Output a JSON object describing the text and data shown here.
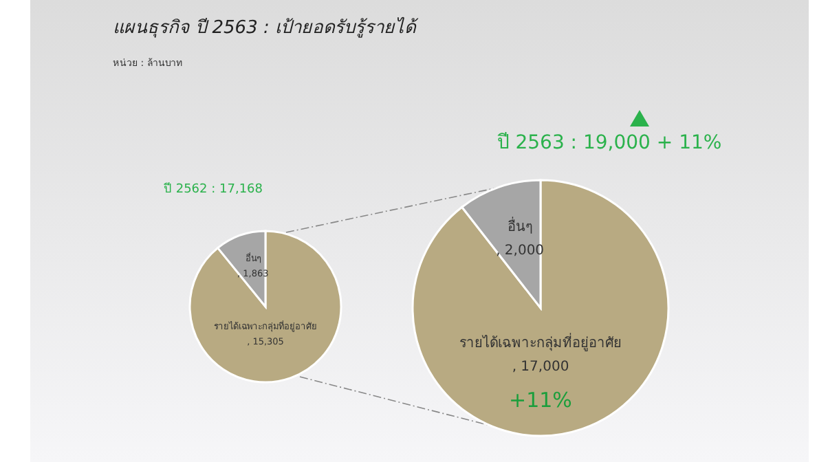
{
  "chart_data": [
    {
      "type": "pie",
      "title": "แผนธุรกิจ ปี 2563  : เป้ายอดรับรู้รายได้",
      "subtitle": "หน่วย : ล้านบาท",
      "annotations": [
        "ปี 2562 : 17,168"
      ],
      "categories": [
        "รายได้เฉพาะกลุ่มที่อยู่อาศัย",
        "อื่นๆ"
      ],
      "values": [
        15305,
        1863
      ],
      "value_labels": [
        ", 15,305",
        ", 1,863"
      ],
      "colors": [
        "#b8aa82",
        "#a6a6a6"
      ]
    },
    {
      "type": "pie",
      "title": "ปี 2563 : 19,000 + 11%",
      "annotations": [
        "+11%"
      ],
      "categories": [
        "รายได้เฉพาะกลุ่มที่อยู่อาศัย",
        "อื่นๆ"
      ],
      "values": [
        17000,
        2000
      ],
      "value_labels": [
        ", 17,000",
        ", 2,000"
      ],
      "colors": [
        "#b8aa82",
        "#a6a6a6"
      ]
    }
  ]
}
